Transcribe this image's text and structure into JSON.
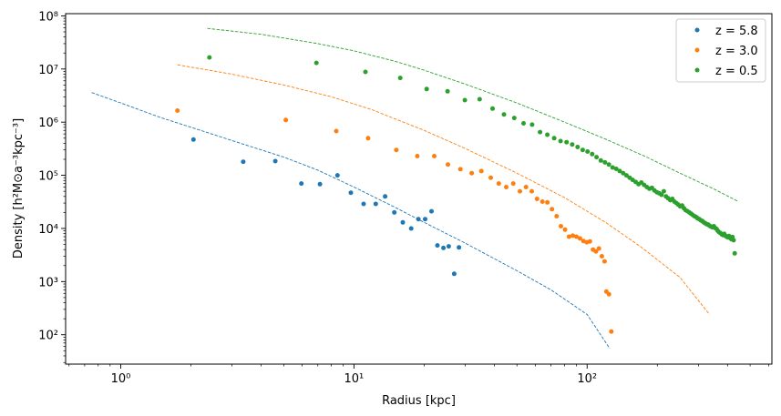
{
  "chart_data": {
    "type": "scatter",
    "xscale": "log",
    "yscale": "log",
    "xlim": [
      0.58,
      620
    ],
    "ylim": [
      28,
      110000000
    ],
    "xlabel": "Radius [kpc]",
    "ylabel": "Density [h²M⊙a⁻³kpc⁻³]",
    "xticks": [
      {
        "value": 1,
        "label": "10⁰"
      },
      {
        "value": 10,
        "label": "10¹"
      },
      {
        "value": 100,
        "label": "10²"
      }
    ],
    "yticks": [
      {
        "value": 100,
        "label": "10²"
      },
      {
        "value": 1000,
        "label": "10³"
      },
      {
        "value": 10000,
        "label": "10⁴"
      },
      {
        "value": 100000,
        "label": "10⁵"
      },
      {
        "value": 1000000,
        "label": "10⁶"
      },
      {
        "value": 10000000,
        "label": "10⁷"
      },
      {
        "value": 100000000,
        "label": "10⁸"
      }
    ],
    "legend_position": "upper right",
    "grid": false,
    "series": [
      {
        "name": "z = 5.8",
        "color": "#1f77b4",
        "points": [
          [
            2.05,
            470000
          ],
          [
            3.35,
            180000
          ],
          [
            4.6,
            185000
          ],
          [
            5.95,
            70000
          ],
          [
            7.15,
            68000
          ],
          [
            8.5,
            100000
          ],
          [
            9.7,
            47000
          ],
          [
            11.0,
            29000
          ],
          [
            12.4,
            29000
          ],
          [
            13.6,
            40000
          ],
          [
            14.9,
            20000
          ],
          [
            16.2,
            13000
          ],
          [
            17.6,
            10000
          ],
          [
            18.9,
            15000
          ],
          [
            20.2,
            15000
          ],
          [
            21.5,
            21000
          ],
          [
            22.8,
            4800
          ],
          [
            24.2,
            4300
          ],
          [
            25.5,
            4600
          ],
          [
            26.9,
            1400
          ],
          [
            28.2,
            4400
          ]
        ],
        "fit_line": [
          [
            0.75,
            3600000
          ],
          [
            1,
            2300000
          ],
          [
            1.5,
            1200000
          ],
          [
            2,
            800000
          ],
          [
            3,
            450000
          ],
          [
            5,
            220000
          ],
          [
            7,
            125000
          ],
          [
            10,
            60000
          ],
          [
            15,
            25000
          ],
          [
            20,
            13000
          ],
          [
            30,
            5300
          ],
          [
            50,
            1600
          ],
          [
            70,
            700
          ],
          [
            100,
            240
          ],
          [
            125,
            55
          ]
        ]
      },
      {
        "name": "z = 3.0",
        "color": "#ff7f0e",
        "points": [
          [
            1.75,
            1650000
          ],
          [
            5.1,
            1100000
          ],
          [
            8.4,
            680000
          ],
          [
            11.5,
            500000
          ],
          [
            15.2,
            300000
          ],
          [
            18.7,
            230000
          ],
          [
            22.1,
            230000
          ],
          [
            25.3,
            160000
          ],
          [
            28.6,
            130000
          ],
          [
            32.0,
            110000
          ],
          [
            35.2,
            120000
          ],
          [
            38.6,
            90000
          ],
          [
            41.8,
            70000
          ],
          [
            45.0,
            60000
          ],
          [
            48.2,
            70000
          ],
          [
            51.5,
            50000
          ],
          [
            54.7,
            60000
          ],
          [
            57.9,
            50000
          ],
          [
            61.0,
            36000
          ],
          [
            64.3,
            32000
          ],
          [
            67.5,
            31000
          ],
          [
            70.7,
            23000
          ],
          [
            74.0,
            17000
          ],
          [
            77.2,
            11000
          ],
          [
            80.4,
            9500
          ],
          [
            83.6,
            7000
          ],
          [
            86.8,
            7300
          ],
          [
            90.0,
            7000
          ],
          [
            93.2,
            6500
          ],
          [
            96.4,
            5800
          ],
          [
            99.6,
            5500
          ],
          [
            102.8,
            5700
          ],
          [
            106.0,
            4000
          ],
          [
            109.2,
            3700
          ],
          [
            112.4,
            4200
          ],
          [
            115.6,
            3000
          ],
          [
            118.8,
            2400
          ],
          [
            121.0,
            650
          ],
          [
            124.0,
            580
          ],
          [
            127.0,
            115
          ]
        ],
        "fit_line": [
          [
            1.75,
            12000000
          ],
          [
            3,
            8000000
          ],
          [
            5,
            5000000
          ],
          [
            8,
            3000000
          ],
          [
            12,
            1700000
          ],
          [
            20,
            700000
          ],
          [
            30,
            320000
          ],
          [
            50,
            110000
          ],
          [
            80,
            38000
          ],
          [
            120,
            13000
          ],
          [
            170,
            4500
          ],
          [
            250,
            1200
          ],
          [
            335,
            240
          ]
        ]
      },
      {
        "name": "z = 0.5",
        "color": "#2ca02c",
        "points": [
          [
            2.4,
            16500000
          ],
          [
            6.9,
            13000000
          ],
          [
            11.2,
            8800000
          ],
          [
            15.8,
            6800000
          ],
          [
            20.5,
            4200000
          ],
          [
            25.2,
            3800000
          ],
          [
            29.9,
            2600000
          ],
          [
            34.6,
            2700000
          ],
          [
            39.3,
            1800000
          ],
          [
            44.0,
            1400000
          ],
          [
            48.7,
            1200000
          ],
          [
            53.4,
            950000
          ],
          [
            58.1,
            900000
          ],
          [
            62.8,
            650000
          ],
          [
            67.5,
            580000
          ],
          [
            72.2,
            500000
          ],
          [
            76.9,
            440000
          ],
          [
            81.6,
            420000
          ],
          [
            86.3,
            380000
          ],
          [
            91.0,
            340000
          ],
          [
            95.7,
            300000
          ],
          [
            100.4,
            280000
          ],
          [
            105.1,
            250000
          ],
          [
            109.8,
            220000
          ],
          [
            114.5,
            190000
          ],
          [
            119.2,
            175000
          ],
          [
            123.9,
            160000
          ],
          [
            128.6,
            140000
          ],
          [
            133.3,
            132000
          ],
          [
            138.0,
            120000
          ],
          [
            142.7,
            110000
          ],
          [
            147.4,
            100000
          ],
          [
            152.1,
            90000
          ],
          [
            156.8,
            82000
          ],
          [
            161.5,
            75000
          ],
          [
            166.2,
            68000
          ],
          [
            170.9,
            73000
          ],
          [
            175.6,
            66000
          ],
          [
            180.3,
            60000
          ],
          [
            185.0,
            56000
          ],
          [
            189.7,
            58000
          ],
          [
            194.4,
            52000
          ],
          [
            199.1,
            48000
          ],
          [
            203.8,
            46000
          ],
          [
            208.5,
            43000
          ],
          [
            213.2,
            50000
          ],
          [
            217.9,
            40000
          ],
          [
            222.6,
            37000
          ],
          [
            227.3,
            34000
          ],
          [
            232.0,
            36000
          ],
          [
            236.7,
            32000
          ],
          [
            241.4,
            30000
          ],
          [
            246.1,
            28000
          ],
          [
            250.8,
            26000
          ],
          [
            255.5,
            27000
          ],
          [
            260.2,
            24000
          ],
          [
            264.9,
            22000
          ],
          [
            269.6,
            21000
          ],
          [
            274.3,
            20000
          ],
          [
            279.0,
            19000
          ],
          [
            283.7,
            18000
          ],
          [
            288.4,
            17000
          ],
          [
            293.1,
            16500
          ],
          [
            297.8,
            15500
          ],
          [
            302.5,
            15000
          ],
          [
            307.2,
            14200
          ],
          [
            311.9,
            13800
          ],
          [
            316.6,
            13000
          ],
          [
            321.3,
            12500
          ],
          [
            326.0,
            12000
          ],
          [
            330.7,
            11800
          ],
          [
            335.4,
            11200
          ],
          [
            340.1,
            10800
          ],
          [
            344.8,
            10500
          ],
          [
            349.5,
            11000
          ],
          [
            354.2,
            10200
          ],
          [
            358.9,
            9800
          ],
          [
            363.6,
            9000
          ],
          [
            368.3,
            8500
          ],
          [
            373.0,
            8200
          ],
          [
            377.7,
            7800
          ],
          [
            382.4,
            7500
          ],
          [
            387.1,
            7900
          ],
          [
            391.8,
            7300
          ],
          [
            396.5,
            7000
          ],
          [
            401.2,
            6800
          ],
          [
            405.9,
            7200
          ],
          [
            410.6,
            6600
          ],
          [
            415.3,
            6300
          ],
          [
            420.0,
            6900
          ],
          [
            424.7,
            6000
          ],
          [
            429.4,
            3400
          ]
        ],
        "fit_line": [
          [
            2.35,
            58000000
          ],
          [
            4,
            45000000
          ],
          [
            7,
            30000000
          ],
          [
            10,
            22000000
          ],
          [
            15,
            14000000
          ],
          [
            20,
            9500000
          ],
          [
            30,
            5200000
          ],
          [
            50,
            2300000
          ],
          [
            80,
            1000000
          ],
          [
            120,
            480000
          ],
          [
            180,
            220000
          ],
          [
            250,
            110000
          ],
          [
            350,
            55000
          ],
          [
            440,
            33000
          ]
        ]
      }
    ]
  }
}
